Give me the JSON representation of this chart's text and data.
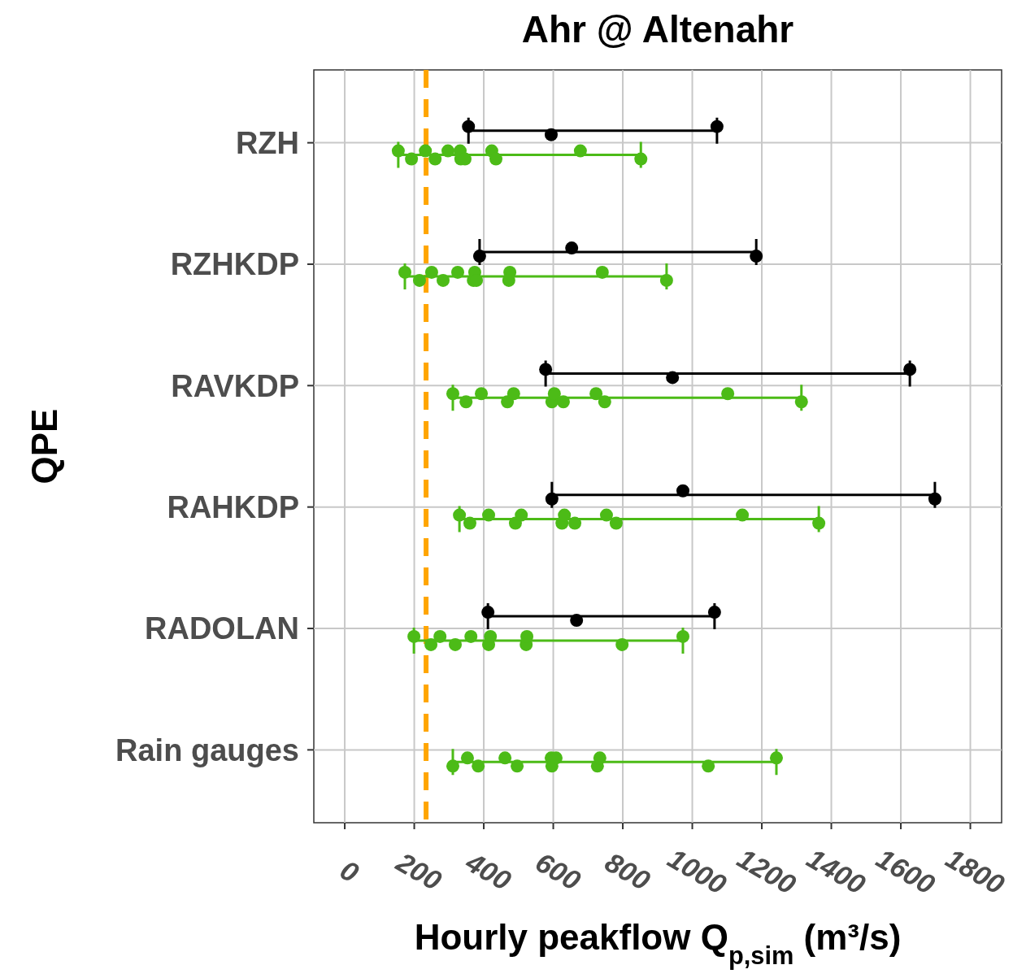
{
  "chart_data": {
    "type": "scatter",
    "title": "Ahr @ Altenahr",
    "xlabel": "Hourly peakflow Q$_{p,sim}$ (m³/s)",
    "ylabel": "QPE",
    "orientation": "horizontal",
    "categories": [
      "RZH",
      "RZHKDP",
      "RAVKDP",
      "RAHKDP",
      "RADOLAN",
      "Rain gauges"
    ],
    "xlim": [
      -89,
      1890
    ],
    "xticks": [
      0,
      200,
      400,
      600,
      800,
      1000,
      1200,
      1400,
      1600,
      1800
    ],
    "grid": true,
    "marker": "circle",
    "ref_lines": [
      {
        "axis": "x",
        "value": 234,
        "color": "#ffa500",
        "line_style": "dashed"
      }
    ],
    "series": [
      {
        "color": "#000000",
        "x": [
          "RZH",
          "RZH",
          "RZH",
          "RZHKDP",
          "RZHKDP",
          "RZHKDP",
          "RAVKDP",
          "RAVKDP",
          "RAVKDP",
          "RAHKDP",
          "RAHKDP",
          "RAHKDP",
          "RADOLAN",
          "RADOLAN",
          "RADOLAN"
        ],
        "values": [
          356,
          594,
          1071,
          388,
          653,
          1184,
          578,
          943,
          1626,
          596,
          973,
          1698,
          412,
          667,
          1064
        ],
        "errors": [
          [
            356,
            1071
          ],
          null,
          null,
          [
            388,
            1184
          ],
          null,
          null,
          [
            578,
            1626
          ],
          null,
          null,
          [
            596,
            1698
          ],
          null,
          null,
          [
            412,
            1064
          ],
          null,
          null
        ]
      },
      {
        "color": "#4cbb17",
        "x": [
          "RZH",
          "RZH",
          "RZH",
          "RZH",
          "RZH",
          "RZH",
          "RZH",
          "RZH",
          "RZH",
          "RZH",
          "RZH",
          "RZH",
          "RZHKDP",
          "RZHKDP",
          "RZHKDP",
          "RZHKDP",
          "RZHKDP",
          "RZHKDP",
          "RZHKDP",
          "RZHKDP",
          "RZHKDP",
          "RZHKDP",
          "RZHKDP",
          "RZHKDP",
          "RAVKDP",
          "RAVKDP",
          "RAVKDP",
          "RAVKDP",
          "RAVKDP",
          "RAVKDP",
          "RAVKDP",
          "RAVKDP",
          "RAVKDP",
          "RAVKDP",
          "RAVKDP",
          "RAVKDP",
          "RAHKDP",
          "RAHKDP",
          "RAHKDP",
          "RAHKDP",
          "RAHKDP",
          "RAHKDP",
          "RAHKDP",
          "RAHKDP",
          "RAHKDP",
          "RAHKDP",
          "RAHKDP",
          "RAHKDP",
          "RADOLAN",
          "RADOLAN",
          "RADOLAN",
          "RADOLAN",
          "RADOLAN",
          "RADOLAN",
          "RADOLAN",
          "RADOLAN",
          "RADOLAN",
          "RADOLAN",
          "RADOLAN",
          "Rain gauges",
          "Rain gauges",
          "Rain gauges",
          "Rain gauges",
          "Rain gauges",
          "Rain gauges",
          "Rain gauges",
          "Rain gauges",
          "Rain gauges",
          "Rain gauges",
          "Rain gauges",
          "Rain gauges"
        ],
        "values": [
          154,
          192,
          232,
          260,
          297,
          334,
          332,
          346,
          423,
          435,
          678,
          852,
          173,
          215,
          250,
          283,
          325,
          370,
          374,
          379,
          475,
          472,
          741,
          926,
          311,
          349,
          393,
          468,
          486,
          596,
          603,
          629,
          723,
          748,
          1102,
          1314,
          330,
          360,
          414,
          491,
          508,
          625,
          632,
          662,
          753,
          781,
          1144,
          1364,
          199,
          248,
          274,
          318,
          363,
          414,
          419,
          522,
          524,
          798,
          973,
          311,
          353,
          384,
          461,
          496,
          594,
          596,
          608,
          727,
          734,
          1046,
          1242
        ],
        "errors": [
          [
            154,
            852
          ],
          null,
          null,
          null,
          null,
          null,
          null,
          null,
          null,
          null,
          null,
          null,
          [
            173,
            926
          ],
          null,
          null,
          null,
          null,
          null,
          null,
          null,
          null,
          null,
          null,
          null,
          [
            311,
            1314
          ],
          null,
          null,
          null,
          null,
          null,
          null,
          null,
          null,
          null,
          null,
          null,
          [
            330,
            1364
          ],
          null,
          null,
          null,
          null,
          null,
          null,
          null,
          null,
          null,
          null,
          null,
          [
            199,
            973
          ],
          null,
          null,
          null,
          null,
          null,
          null,
          null,
          null,
          null,
          null,
          [
            311,
            1242
          ],
          null,
          null,
          null,
          null,
          null,
          null,
          null,
          null,
          null,
          null,
          null
        ]
      }
    ]
  }
}
